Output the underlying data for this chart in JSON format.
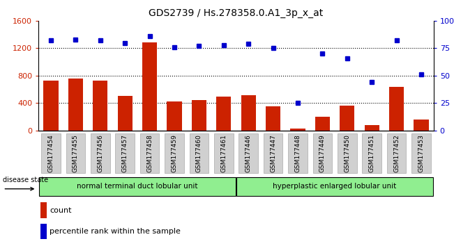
{
  "title": "GDS2739 / Hs.278358.0.A1_3p_x_at",
  "samples": [
    "GSM177454",
    "GSM177455",
    "GSM177456",
    "GSM177457",
    "GSM177458",
    "GSM177459",
    "GSM177460",
    "GSM177461",
    "GSM177446",
    "GSM177447",
    "GSM177448",
    "GSM177449",
    "GSM177450",
    "GSM177451",
    "GSM177452",
    "GSM177453"
  ],
  "counts": [
    730,
    760,
    730,
    500,
    1290,
    420,
    440,
    490,
    510,
    355,
    30,
    200,
    360,
    80,
    640,
    160
  ],
  "percentiles": [
    82,
    83,
    82,
    80,
    86,
    76,
    77,
    78,
    79,
    75,
    25,
    70,
    66,
    44,
    82,
    51
  ],
  "group1_count": 8,
  "group2_count": 8,
  "group1_label": "normal terminal duct lobular unit",
  "group2_label": "hyperplastic enlarged lobular unit",
  "disease_state_label": "disease state",
  "ylim_left": [
    0,
    1600
  ],
  "ylim_right": [
    0,
    100
  ],
  "yticks_left": [
    0,
    400,
    800,
    1200,
    1600
  ],
  "yticks_right": [
    0,
    25,
    50,
    75,
    100
  ],
  "yticklabels_right": [
    "0",
    "25",
    "50",
    "75",
    "100%"
  ],
  "bar_color": "#cc2200",
  "dot_color": "#0000cc",
  "bg_color": "#ffffff",
  "tick_bg": "#d0d0d0",
  "group_color": "#90ee90",
  "legend_count_color": "#cc2200",
  "legend_pct_color": "#0000cc",
  "dotted_line_color": "#000000",
  "title_fontsize": 10,
  "tick_fontsize": 6.5,
  "legend_fontsize": 8
}
